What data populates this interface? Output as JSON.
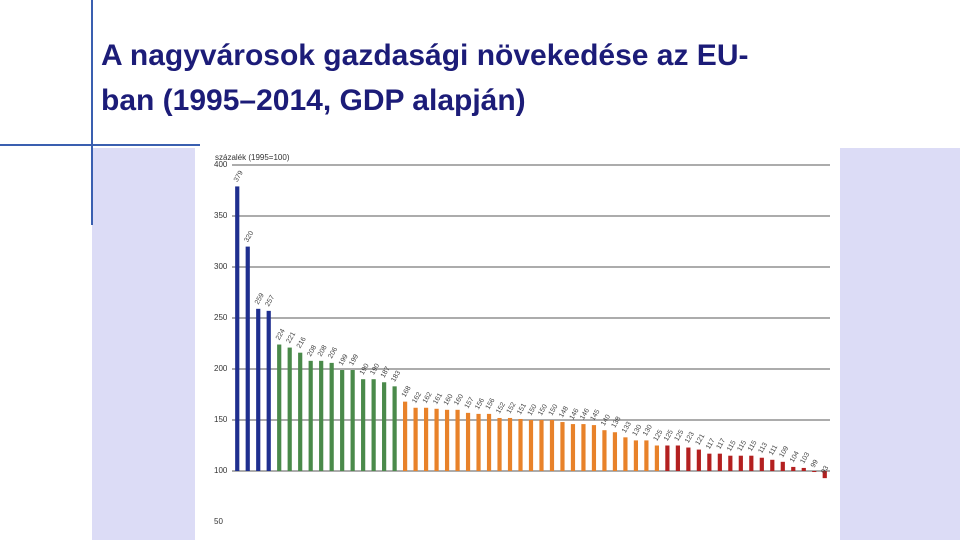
{
  "slide": {
    "title": [
      "A nagyvárosok gazdasági növekedése az EU-",
      "ban (1995–2014, GDP alapján)"
    ]
  },
  "chart_data": {
    "type": "bar",
    "y_label": "százalék (1995=100)",
    "ylim": [
      50,
      400
    ],
    "yticks": [
      50,
      100,
      150,
      200,
      250,
      300,
      350,
      400
    ],
    "grid": true,
    "categories": [
      null,
      null,
      null,
      null,
      null,
      null,
      null,
      null,
      null,
      null,
      null,
      null,
      null,
      null,
      null,
      null,
      null,
      null,
      null,
      null,
      null,
      null,
      null,
      null,
      null,
      null,
      null,
      null,
      null,
      null,
      null,
      null,
      null,
      null,
      null,
      null,
      null,
      null,
      null,
      null,
      null,
      null,
      null,
      null,
      null,
      null,
      null,
      null,
      null,
      null,
      null,
      null,
      null,
      null,
      null,
      null,
      null
    ],
    "values": [
      379,
      320,
      259,
      257,
      224,
      221,
      216,
      208,
      208,
      206,
      199,
      199,
      190,
      190,
      187,
      183,
      168,
      162,
      162,
      161,
      160,
      160,
      157,
      156,
      156,
      152,
      152,
      151,
      150,
      150,
      150,
      148,
      146,
      146,
      145,
      140,
      138,
      133,
      130,
      130,
      125,
      125,
      125,
      123,
      121,
      117,
      117,
      115,
      115,
      115,
      113,
      111,
      109,
      104,
      103,
      99,
      93
    ],
    "colors": [
      "#1f2f8f",
      "#1f2f8f",
      "#1f2f8f",
      "#1f2f8f",
      "#4a8a4a",
      "#4a8a4a",
      "#4a8a4a",
      "#4a8a4a",
      "#4a8a4a",
      "#4a8a4a",
      "#4a8a4a",
      "#4a8a4a",
      "#4a8a4a",
      "#4a8a4a",
      "#4a8a4a",
      "#4a8a4a",
      "#e8822a",
      "#e8822a",
      "#e8822a",
      "#e8822a",
      "#e8822a",
      "#e8822a",
      "#e8822a",
      "#e8822a",
      "#e8822a",
      "#e8822a",
      "#e8822a",
      "#e8822a",
      "#e8822a",
      "#e8822a",
      "#e8822a",
      "#e8822a",
      "#e8822a",
      "#e8822a",
      "#e8822a",
      "#e8822a",
      "#e8822a",
      "#e8822a",
      "#e8822a",
      "#e8822a",
      "#e8822a",
      "#b32020",
      "#b32020",
      "#b32020",
      "#b32020",
      "#b32020",
      "#b32020",
      "#b32020",
      "#b32020",
      "#b32020",
      "#b32020",
      "#b32020",
      "#b32020",
      "#b32020",
      "#b32020",
      "#b32020",
      "#b32020"
    ]
  }
}
